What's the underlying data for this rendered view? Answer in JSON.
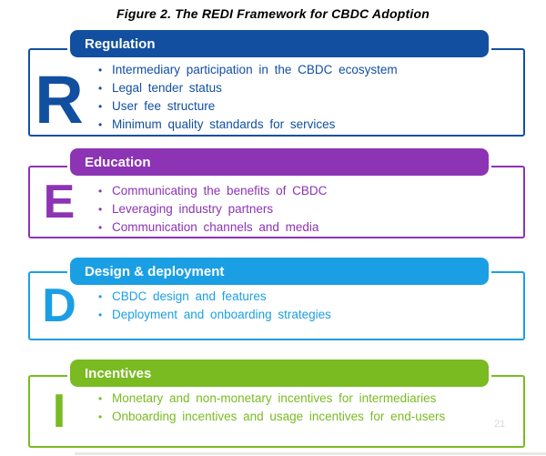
{
  "title": "Figure 2. The REDI Framework for CBDC Adoption",
  "page_number": "21",
  "sections": [
    {
      "letter": "R",
      "header": "Regulation",
      "color": "#124FA0",
      "bullets": [
        "Intermediary participation in the CBDC ecosystem",
        "Legal tender status",
        "User fee structure",
        "Minimum quality standards for services"
      ]
    },
    {
      "letter": "E",
      "header": "Education",
      "color": "#8C34B4",
      "bullets": [
        "Communicating the benefits of CBDC",
        "Leveraging industry partners",
        "Communication channels and media"
      ]
    },
    {
      "letter": "D",
      "header": "Design & deployment",
      "color": "#1B9FE4",
      "bullets": [
        "CBDC design and features",
        "Deployment and onboarding strategies"
      ]
    },
    {
      "letter": "I",
      "header": "Incentives",
      "color": "#79BB21",
      "bullets": [
        "Monetary and non-monetary incentives for intermediaries",
        "Onboarding incentives and usage incentives for end-users"
      ]
    }
  ]
}
